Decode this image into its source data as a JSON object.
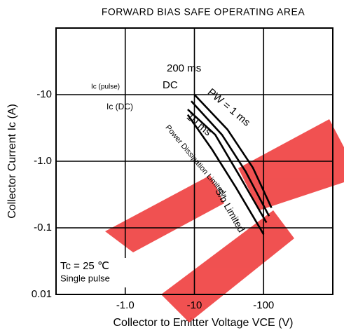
{
  "chart_data": {
    "type": "line",
    "title": "FORWARD BIAS SAFE OPERATING AREA",
    "x_label": "Collector to Emitter Voltage VCE (V)",
    "y_label": "Collector Current Ic (A)",
    "log_x": true,
    "log_y": true,
    "grid": true,
    "xlim": [
      -0.1,
      -1000
    ],
    "ylim": [
      -0.01,
      -100
    ],
    "xticks": [
      {
        "value": -1,
        "label": "-1.0"
      },
      -10,
      -100
    ],
    "yticks": [
      -10,
      {
        "value": -1,
        "label": "-1.0"
      },
      -0.1,
      0.01
    ],
    "series": [
      {
        "name": "200 ms",
        "color": "#000000",
        "x": [
          -8,
          -20,
          -45,
          -110
        ],
        "values": [
          -6,
          -2.5,
          -0.6,
          -0.12
        ]
      },
      {
        "name": "DC",
        "color": "#000000",
        "x": [
          -8,
          -18,
          -40,
          -100
        ],
        "values": [
          -5,
          -1.5,
          -0.4,
          -0.08
        ]
      },
      {
        "name": "PW = 1 ms",
        "color": "#000000",
        "x": [
          -10,
          -30,
          -70,
          -130
        ],
        "values": [
          -10,
          -3,
          -0.8,
          -0.2
        ]
      },
      {
        "name": "10 ms",
        "color": "#000000",
        "x": [
          -9,
          -25,
          -55,
          -120
        ],
        "values": [
          -8,
          -2.5,
          -0.7,
          -0.15
        ]
      }
    ],
    "annotations": [
      "Ic (pulse)",
      "Ic (DC)",
      "Power Dissipation Limited",
      "S/b Limited",
      "Tc = 25 ℃",
      "Single pulse"
    ]
  }
}
